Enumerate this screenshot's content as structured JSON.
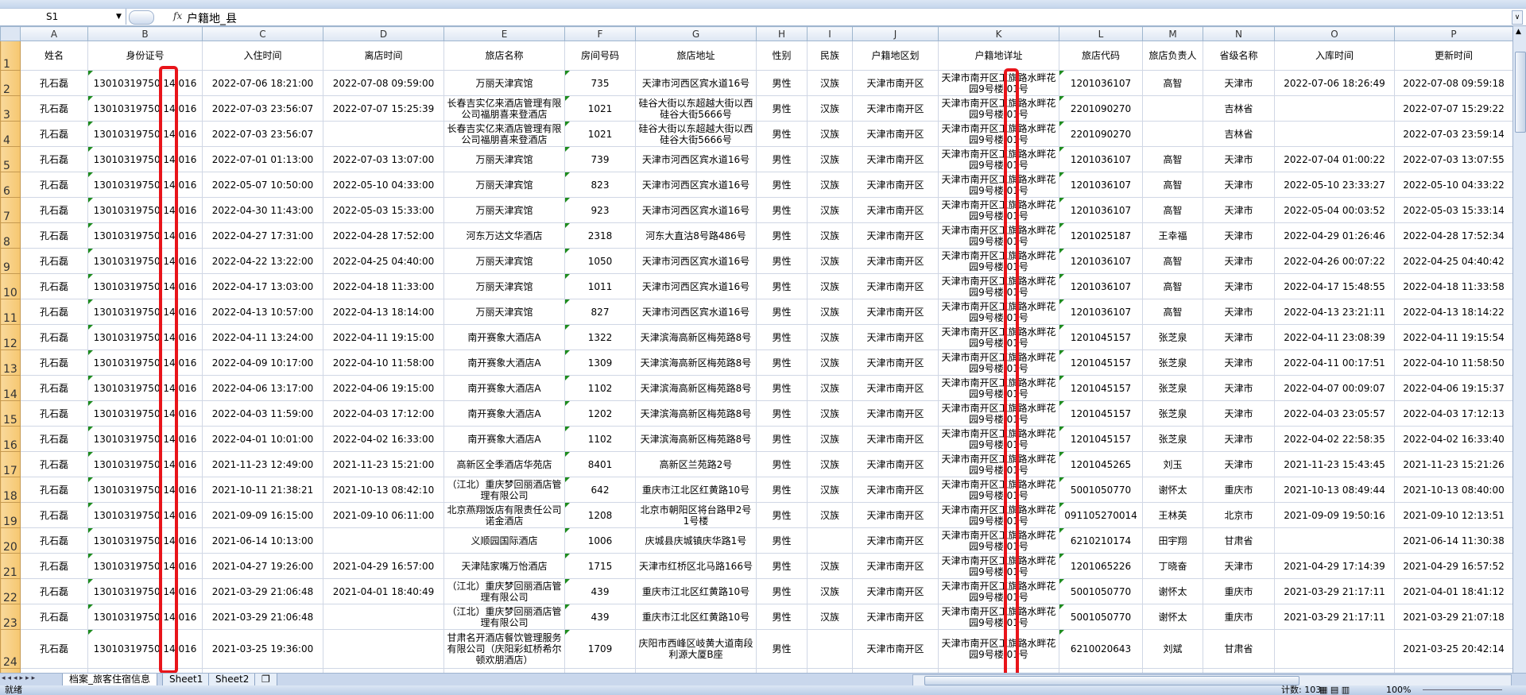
{
  "formula_bar": {
    "name_box": "S1",
    "fx_label": "fx",
    "formula": "户籍地_县"
  },
  "columns": [
    "A",
    "B",
    "C",
    "D",
    "E",
    "F",
    "G",
    "H",
    "I",
    "J",
    "K",
    "L",
    "M",
    "N",
    "O",
    "P"
  ],
  "header_row": {
    "n": "1",
    "cells": [
      "姓名",
      "身份证号",
      "入住时间",
      "离店时间",
      "旅店名称",
      "房间号码",
      "旅店地址",
      "性别",
      "民族",
      "户籍地区划",
      "户籍地详址",
      "旅店代码",
      "旅店负责人",
      "省级名称",
      "入库时间",
      "更新时间"
    ]
  },
  "common": {
    "name": "孔石磊",
    "id_visible": "13010319750 14 016",
    "gender": "男性",
    "district": "天津市南开区",
    "address": "天津市南开区工旗路水畔花园9号楼.01号"
  },
  "rows": [
    [
      "2",
      "2022-07-06 18:21:00",
      "2022-07-08 09:59:00",
      "万丽天津宾馆",
      "735",
      "天津市河西区宾水道16号",
      "汉族",
      "1201036107",
      "高智",
      "天津市",
      "2022-07-06 18:26:49",
      "2022-07-08 09:59:18"
    ],
    [
      "3",
      "2022-07-03 23:56:07",
      "2022-07-07 15:25:39",
      "长春吉实亿来酒店管理有限公司福朋喜来登酒店",
      "1021",
      "硅谷大街以东超越大街以西硅谷大街5666号",
      "汉族",
      "2201090270",
      "",
      "吉林省",
      "",
      "2022-07-07 15:29:22"
    ],
    [
      "4",
      "2022-07-03 23:56:07",
      "",
      "长春吉实亿来酒店管理有限公司福朋喜来登酒店",
      "1021",
      "硅谷大街以东超越大街以西硅谷大街5666号",
      "汉族",
      "2201090270",
      "",
      "吉林省",
      "",
      "2022-07-03 23:59:14"
    ],
    [
      "5",
      "2022-07-01 01:13:00",
      "2022-07-03 13:07:00",
      "万丽天津宾馆",
      "739",
      "天津市河西区宾水道16号",
      "汉族",
      "1201036107",
      "高智",
      "天津市",
      "2022-07-04 01:00:22",
      "2022-07-03 13:07:55"
    ],
    [
      "6",
      "2022-05-07 10:50:00",
      "2022-05-10 04:33:00",
      "万丽天津宾馆",
      "823",
      "天津市河西区宾水道16号",
      "汉族",
      "1201036107",
      "高智",
      "天津市",
      "2022-05-10 23:33:27",
      "2022-05-10 04:33:22"
    ],
    [
      "7",
      "2022-04-30 11:43:00",
      "2022-05-03 15:33:00",
      "万丽天津宾馆",
      "923",
      "天津市河西区宾水道16号",
      "汉族",
      "1201036107",
      "高智",
      "天津市",
      "2022-05-04 00:03:52",
      "2022-05-03 15:33:14"
    ],
    [
      "8",
      "2022-04-27 17:31:00",
      "2022-04-28 17:52:00",
      "河东万达文华酒店",
      "2318",
      "河东大直沽8号路486号",
      "汉族",
      "1201025187",
      "王幸福",
      "天津市",
      "2022-04-29 01:26:46",
      "2022-04-28 17:52:34"
    ],
    [
      "9",
      "2022-04-22 13:22:00",
      "2022-04-25 04:40:00",
      "万丽天津宾馆",
      "1050",
      "天津市河西区宾水道16号",
      "汉族",
      "1201036107",
      "高智",
      "天津市",
      "2022-04-26 00:07:22",
      "2022-04-25 04:40:42"
    ],
    [
      "10",
      "2022-04-17 13:03:00",
      "2022-04-18 11:33:00",
      "万丽天津宾馆",
      "1011",
      "天津市河西区宾水道16号",
      "汉族",
      "1201036107",
      "高智",
      "天津市",
      "2022-04-17 15:48:55",
      "2022-04-18 11:33:58"
    ],
    [
      "11",
      "2022-04-13 10:57:00",
      "2022-04-13 18:14:00",
      "万丽天津宾馆",
      "827",
      "天津市河西区宾水道16号",
      "汉族",
      "1201036107",
      "高智",
      "天津市",
      "2022-04-13 23:21:11",
      "2022-04-13 18:14:22"
    ],
    [
      "12",
      "2022-04-11 13:24:00",
      "2022-04-11 19:15:00",
      "南开赛象大酒店A",
      "1322",
      "天津滨海高新区梅苑路8号",
      "汉族",
      "1201045157",
      "张芝泉",
      "天津市",
      "2022-04-11 23:08:39",
      "2022-04-11 19:15:54"
    ],
    [
      "13",
      "2022-04-09 10:17:00",
      "2022-04-10 11:58:00",
      "南开赛象大酒店A",
      "1309",
      "天津滨海高新区梅苑路8号",
      "汉族",
      "1201045157",
      "张芝泉",
      "天津市",
      "2022-04-11 00:17:51",
      "2022-04-10 11:58:50"
    ],
    [
      "14",
      "2022-04-06 13:17:00",
      "2022-04-06 19:15:00",
      "南开赛象大酒店A",
      "1102",
      "天津滨海高新区梅苑路8号",
      "汉族",
      "1201045157",
      "张芝泉",
      "天津市",
      "2022-04-07 00:09:07",
      "2022-04-06 19:15:37"
    ],
    [
      "15",
      "2022-04-03 11:59:00",
      "2022-04-03 17:12:00",
      "南开赛象大酒店A",
      "1202",
      "天津滨海高新区梅苑路8号",
      "汉族",
      "1201045157",
      "张芝泉",
      "天津市",
      "2022-04-03 23:05:57",
      "2022-04-03 17:12:13"
    ],
    [
      "16",
      "2022-04-01 10:01:00",
      "2022-04-02 16:33:00",
      "南开赛象大酒店A",
      "1102",
      "天津滨海高新区梅苑路8号",
      "汉族",
      "1201045157",
      "张芝泉",
      "天津市",
      "2022-04-02 22:58:35",
      "2022-04-02 16:33:40"
    ],
    [
      "17",
      "2021-11-23 12:49:00",
      "2021-11-23 15:21:00",
      "高新区全季酒店华苑店",
      "8401",
      "高新区兰苑路2号",
      "汉族",
      "1201045265",
      "刘玉",
      "天津市",
      "2021-11-23 15:43:45",
      "2021-11-23 15:21:26"
    ],
    [
      "18",
      "2021-10-11 21:38:21",
      "2021-10-13 08:42:10",
      "（江北）重庆梦回丽酒店管理有限公司",
      "642",
      "重庆市江北区红黄路10号",
      "汉族",
      "5001050770",
      "谢怀太",
      "重庆市",
      "2021-10-13 08:49:44",
      "2021-10-13 08:40:00"
    ],
    [
      "19",
      "2021-09-09 16:15:00",
      "2021-09-10 06:11:00",
      "北京燕翔饭店有限责任公司诺金酒店",
      "1208",
      "北京市朝阳区将台路甲2号1号楼",
      "汉族",
      "091105270014",
      "王林英",
      "北京市",
      "2021-09-09 19:50:16",
      "2021-09-10 12:13:51"
    ],
    [
      "20",
      "2021-06-14 10:13:00",
      "",
      "义顺园国际酒店",
      "1006",
      "庆城县庆城镇庆华路1号",
      "",
      "6210210174",
      "田宇翔",
      "甘肃省",
      "",
      "2021-06-14 11:30:38"
    ],
    [
      "21",
      "2021-04-27 19:26:00",
      "2021-04-29 16:57:00",
      "天津陆家嘴万怡酒店",
      "1715",
      "天津市红桥区北马路166号",
      "汉族",
      "1201065226",
      "丁晓奋",
      "天津市",
      "2021-04-29 17:14:39",
      "2021-04-29 16:57:52"
    ],
    [
      "22",
      "2021-03-29 21:06:48",
      "2021-04-01 18:40:49",
      "（江北）重庆梦回丽酒店管理有限公司",
      "439",
      "重庆市江北区红黄路10号",
      "汉族",
      "5001050770",
      "谢怀太",
      "重庆市",
      "2021-03-29 21:17:11",
      "2021-04-01 18:41:12"
    ],
    [
      "23",
      "2021-03-29 21:06:48",
      "",
      "（江北）重庆梦回丽酒店管理有限公司",
      "439",
      "重庆市江北区红黄路10号",
      "汉族",
      "5001050770",
      "谢怀太",
      "重庆市",
      "2021-03-29 21:17:11",
      "2021-03-29 21:07:18"
    ],
    [
      "24",
      "2021-03-25 19:36:00",
      "",
      "甘肃名开酒店餐饮管理服务有限公司（庆阳彩虹桥希尔顿欢朋酒店）",
      "1709",
      "庆阳市西峰区岐黄大道南段利源大厦B座",
      "",
      "6210020643",
      "刘斌",
      "甘肃省",
      "",
      "2021-03-25 20:42:14"
    ]
  ],
  "sheet_tabs": [
    "档案_旅客住宿信息",
    "Sheet1",
    "Sheet2"
  ],
  "active_tab": 0,
  "status": {
    "ready": "就绪",
    "count": "计数: 103",
    "zoom": "100%"
  },
  "colors": {
    "highlight_box": "#e8141a",
    "row_header": "#f6c770",
    "text_number_marker": "#1e8c1e"
  }
}
